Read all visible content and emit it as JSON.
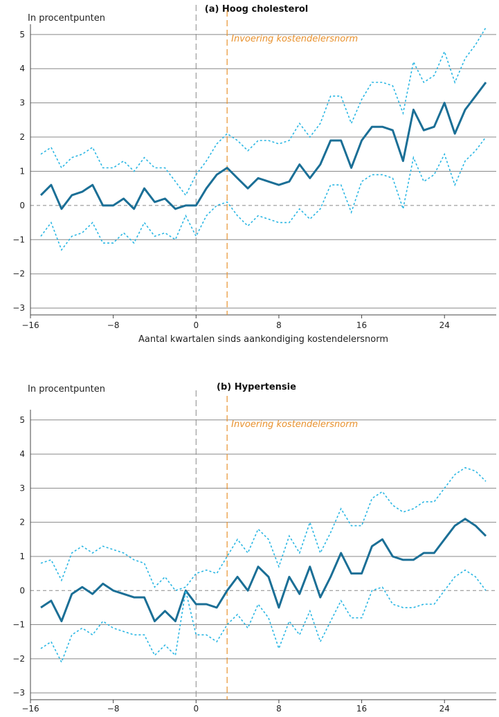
{
  "chart_data": [
    {
      "type": "line",
      "title": "(a) Hoog cholesterol",
      "ylabel": "In procentpunten",
      "xlabel": "Aantal kwartalen sinds aankondiging kostendelersnorm",
      "xlim": [
        -16,
        29
      ],
      "ylim": [
        -3.2,
        5.3
      ],
      "xticks": [
        -16,
        -8,
        0,
        8,
        16,
        24
      ],
      "xtick_labels": [
        "−16",
        "−8",
        "0",
        "8",
        "16",
        "24"
      ],
      "yticks": [
        -3,
        -2,
        -1,
        0,
        1,
        2,
        3,
        4,
        5
      ],
      "ytick_labels": [
        "−3",
        "−2",
        "−1",
        "0",
        "1",
        "2",
        "3",
        "4",
        "5"
      ],
      "grid": "horizontal",
      "announcement_x": 0,
      "introduction_x": 3,
      "annotation": "Invoering kostendelersnorm",
      "colors": {
        "estimate": "#1b6f96",
        "ci": "#29b6e3",
        "announcement": "#888888",
        "introduction": "#e8912d",
        "grid": "#888888"
      },
      "x": [
        -15,
        -14,
        -13,
        -12,
        -11,
        -10,
        -9,
        -8,
        -7,
        -6,
        -5,
        -4,
        -3,
        -2,
        -1,
        0,
        1,
        2,
        3,
        4,
        5,
        6,
        7,
        8,
        9,
        10,
        11,
        12,
        13,
        14,
        15,
        16,
        17,
        18,
        19,
        20,
        21,
        22,
        23,
        24,
        25,
        26,
        27,
        28
      ],
      "series": [
        {
          "role": "estimate",
          "values": [
            0.3,
            0.6,
            -0.1,
            0.3,
            0.4,
            0.6,
            0.0,
            0.0,
            0.2,
            -0.1,
            0.5,
            0.1,
            0.2,
            -0.1,
            0.0,
            0.0,
            0.5,
            0.9,
            1.1,
            0.8,
            0.5,
            0.8,
            0.7,
            0.6,
            0.7,
            1.2,
            0.8,
            1.2,
            1.9,
            1.9,
            1.1,
            1.9,
            2.3,
            2.3,
            2.2,
            1.3,
            2.8,
            2.2,
            2.3,
            3.0,
            2.1,
            2.8,
            3.2,
            3.6
          ]
        },
        {
          "role": "ci-upper",
          "values": [
            1.5,
            1.7,
            1.1,
            1.4,
            1.5,
            1.7,
            1.1,
            1.1,
            1.3,
            1.0,
            1.4,
            1.1,
            1.1,
            0.7,
            0.3,
            0.9,
            1.3,
            1.8,
            2.1,
            1.9,
            1.6,
            1.9,
            1.9,
            1.8,
            1.9,
            2.4,
            2.0,
            2.4,
            3.2,
            3.2,
            2.4,
            3.1,
            3.6,
            3.6,
            3.5,
            2.7,
            4.2,
            3.6,
            3.8,
            4.5,
            3.6,
            4.3,
            4.7,
            5.2
          ]
        },
        {
          "role": "ci-lower",
          "values": [
            -0.9,
            -0.5,
            -1.3,
            -0.9,
            -0.8,
            -0.5,
            -1.1,
            -1.1,
            -0.8,
            -1.1,
            -0.5,
            -0.9,
            -0.8,
            -1.0,
            -0.3,
            -0.9,
            -0.3,
            0.0,
            0.1,
            -0.3,
            -0.6,
            -0.3,
            -0.4,
            -0.5,
            -0.5,
            -0.1,
            -0.4,
            -0.1,
            0.6,
            0.6,
            -0.2,
            0.7,
            0.9,
            0.9,
            0.8,
            -0.1,
            1.4,
            0.7,
            0.9,
            1.5,
            0.6,
            1.3,
            1.6,
            2.0
          ]
        }
      ]
    },
    {
      "type": "line",
      "title": "(b) Hypertensie",
      "ylabel": "In procentpunten",
      "xlabel": "Aantal kwartalen sinds aankondiging kostendelersnorm",
      "xlim": [
        -16,
        29
      ],
      "ylim": [
        -3.2,
        5.3
      ],
      "xticks": [
        -16,
        -8,
        0,
        8,
        16,
        24
      ],
      "xtick_labels": [
        "−16",
        "−8",
        "0",
        "8",
        "16",
        "24"
      ],
      "yticks": [
        -3,
        -2,
        -1,
        0,
        1,
        2,
        3,
        4,
        5
      ],
      "ytick_labels": [
        "−3",
        "−2",
        "−1",
        "0",
        "1",
        "2",
        "3",
        "4",
        "5"
      ],
      "grid": "horizontal",
      "announcement_x": 0,
      "introduction_x": 3,
      "annotation": "Invoering kostendelersnorm",
      "colors": {
        "estimate": "#1b6f96",
        "ci": "#29b6e3",
        "announcement": "#888888",
        "introduction": "#e8912d",
        "grid": "#888888"
      },
      "x": [
        -15,
        -14,
        -13,
        -12,
        -11,
        -10,
        -9,
        -8,
        -7,
        -6,
        -5,
        -4,
        -3,
        -2,
        -1,
        0,
        1,
        2,
        3,
        4,
        5,
        6,
        7,
        8,
        9,
        10,
        11,
        12,
        13,
        14,
        15,
        16,
        17,
        18,
        19,
        20,
        21,
        22,
        23,
        24,
        25,
        26,
        27,
        28
      ],
      "series": [
        {
          "role": "estimate",
          "values": [
            -0.5,
            -0.3,
            -0.9,
            -0.1,
            0.1,
            -0.1,
            0.2,
            0.0,
            -0.1,
            -0.2,
            -0.2,
            -0.9,
            -0.6,
            -0.9,
            0.0,
            -0.4,
            -0.4,
            -0.5,
            0.0,
            0.4,
            0.0,
            0.7,
            0.4,
            -0.5,
            0.4,
            -0.1,
            0.7,
            -0.2,
            0.4,
            1.1,
            0.5,
            0.5,
            1.3,
            1.5,
            1.0,
            0.9,
            0.9,
            1.1,
            1.1,
            1.5,
            1.9,
            2.1,
            1.9,
            1.6
          ]
        },
        {
          "role": "ci-upper",
          "values": [
            0.8,
            0.9,
            0.3,
            1.1,
            1.3,
            1.1,
            1.3,
            1.2,
            1.1,
            0.9,
            0.8,
            0.1,
            0.4,
            0.0,
            0.1,
            0.5,
            0.6,
            0.5,
            1.0,
            1.5,
            1.1,
            1.8,
            1.5,
            0.7,
            1.6,
            1.1,
            2.0,
            1.1,
            1.7,
            2.4,
            1.9,
            1.9,
            2.7,
            2.9,
            2.5,
            2.3,
            2.4,
            2.6,
            2.6,
            3.0,
            3.4,
            3.6,
            3.5,
            3.2
          ]
        },
        {
          "role": "ci-lower",
          "values": [
            -1.7,
            -1.5,
            -2.1,
            -1.3,
            -1.1,
            -1.3,
            -0.9,
            -1.1,
            -1.2,
            -1.3,
            -1.3,
            -1.9,
            -1.6,
            -1.9,
            0.0,
            -1.3,
            -1.3,
            -1.5,
            -1.0,
            -0.7,
            -1.1,
            -0.4,
            -0.8,
            -1.7,
            -0.9,
            -1.3,
            -0.6,
            -1.5,
            -0.9,
            -0.3,
            -0.8,
            -0.8,
            0.0,
            0.1,
            -0.4,
            -0.5,
            -0.5,
            -0.4,
            -0.4,
            0.0,
            0.4,
            0.6,
            0.4,
            0.0
          ]
        }
      ]
    }
  ]
}
